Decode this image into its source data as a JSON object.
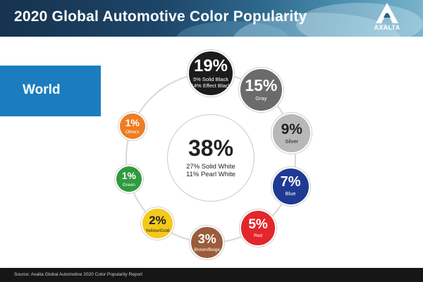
{
  "header": {
    "title": "2020 Global Automotive Color Popularity",
    "logo_text": "AXALTA"
  },
  "region": {
    "label": "World"
  },
  "chart_data": {
    "type": "bubble-ring",
    "title": "2020 Global Automotive Color Popularity",
    "region": "World",
    "units": "percent",
    "center": {
      "name": "White",
      "value": 38,
      "label": "38%",
      "details": [
        "27% Solid White",
        "11% Pearl White"
      ]
    },
    "slices": [
      {
        "name": "Black",
        "value": 19,
        "label": "19%",
        "details": [
          "5% Solid Black",
          "14% Effect Black"
        ],
        "color": "#1c1c1c"
      },
      {
        "name": "Gray",
        "value": 15,
        "label": "15%",
        "details": [
          "Gray"
        ],
        "color": "#6b6b6b"
      },
      {
        "name": "Silver",
        "value": 9,
        "label": "9%",
        "details": [
          "Silver"
        ],
        "color": "#b8b8b8"
      },
      {
        "name": "Blue",
        "value": 7,
        "label": "7%",
        "details": [
          "Blue"
        ],
        "color": "#1f3a93"
      },
      {
        "name": "Red",
        "value": 5,
        "label": "5%",
        "details": [
          "Red"
        ],
        "color": "#e3262b"
      },
      {
        "name": "Brown/Beige",
        "value": 3,
        "label": "3%",
        "details": [
          "Brown/Beige"
        ],
        "color": "#9b5c3b"
      },
      {
        "name": "Yellow/Gold",
        "value": 2,
        "label": "2%",
        "details": [
          "Yellow/Gold"
        ],
        "color": "#f5c91b"
      },
      {
        "name": "Green",
        "value": 1,
        "label": "1%",
        "details": [
          "Green"
        ],
        "color": "#2f9a3e"
      },
      {
        "name": "Others",
        "value": 1,
        "label": "1%",
        "details": [
          "Others"
        ],
        "color": "#ef7d22"
      }
    ]
  },
  "footer": {
    "source": "Source: Axalta Global Automotive 2020 Color Popularity Report"
  }
}
